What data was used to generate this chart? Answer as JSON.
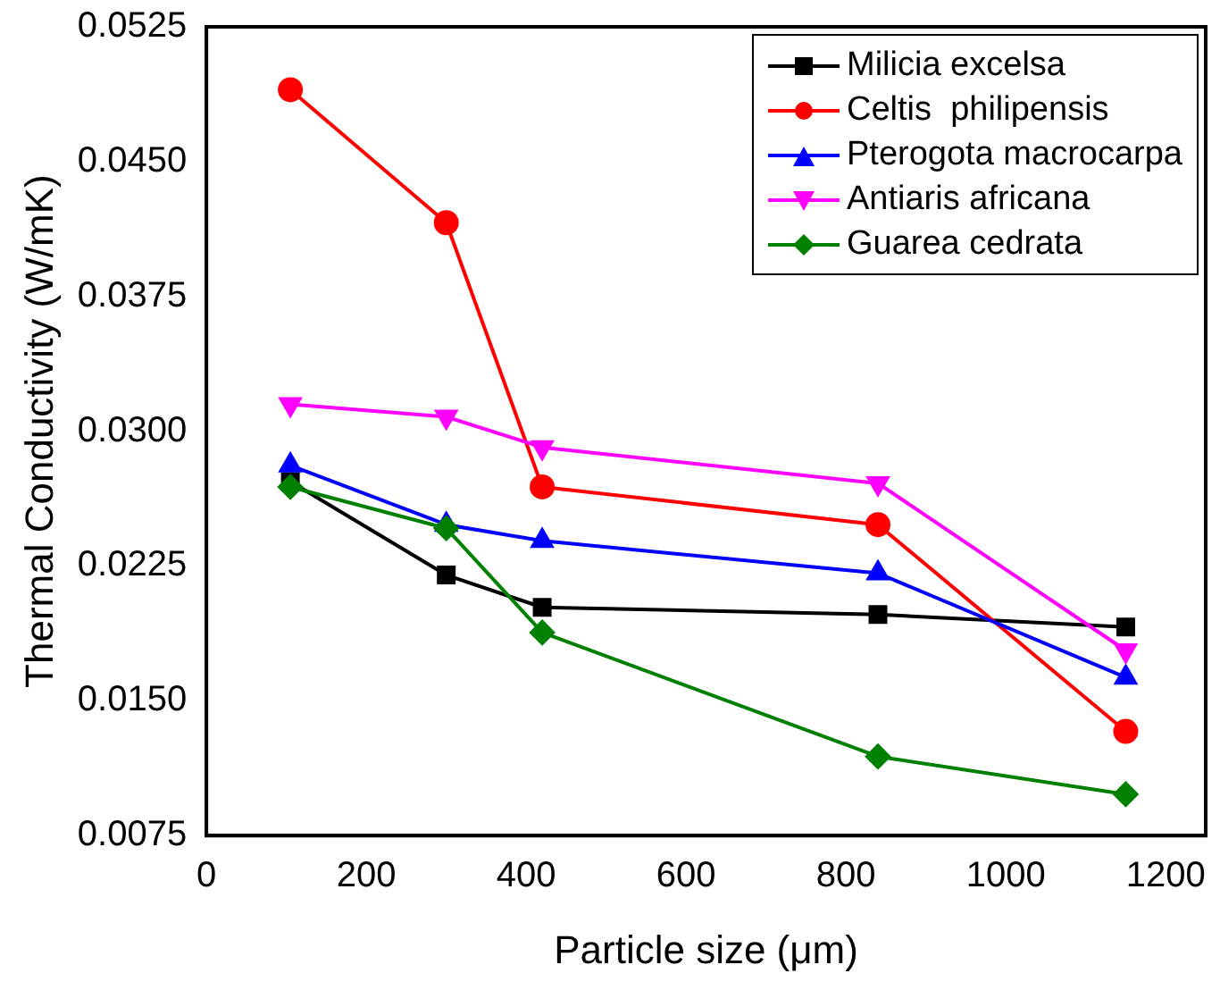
{
  "chart_data": {
    "type": "line",
    "xlabel": "Particle size (μm)",
    "ylabel": "Thermal Conductivity (W/mK)",
    "xlim": [
      0,
      1250
    ],
    "xticks": [
      0,
      200,
      400,
      600,
      800,
      1000,
      1200
    ],
    "ylim": [
      0.0075,
      0.0525
    ],
    "yticks": [
      0.0075,
      {
        "value": 0.015,
        "label": "0.0150"
      },
      0.0225,
      {
        "value": 0.03,
        "label": "0.0300"
      },
      0.0375,
      {
        "value": 0.045,
        "label": "0.0450"
      },
      0.0525
    ],
    "grid": false,
    "legend": "top right",
    "line_style": "solid",
    "x": [
      105,
      300,
      420,
      840,
      1150
    ],
    "series": [
      {
        "name": "Milicia excelsa",
        "color": "#000000",
        "marker": "square",
        "values": [
          0.0272,
          0.022,
          0.0202,
          0.0198,
          0.0191
        ]
      },
      {
        "name": "Celtis  philipensis",
        "color": "#ff0000",
        "marker": "circle",
        "values": [
          0.049,
          0.0416,
          0.0269,
          0.0248,
          0.0133
        ]
      },
      {
        "name": "Pterogota macrocarpa",
        "color": "#0000ff",
        "marker": "triangle",
        "values": [
          0.0281,
          0.0248,
          0.0239,
          0.0221,
          0.0163
        ]
      },
      {
        "name": "Antiaris africana",
        "color": "#ff00ff",
        "marker": "triangle-down",
        "values": [
          0.0315,
          0.0308,
          0.0291,
          0.0271,
          0.0178
        ]
      },
      {
        "name": "Guarea cedrata",
        "color": "#008000",
        "marker": "diamond",
        "values": [
          0.0269,
          0.0246,
          0.0188,
          0.0119,
          0.0098
        ]
      }
    ]
  }
}
